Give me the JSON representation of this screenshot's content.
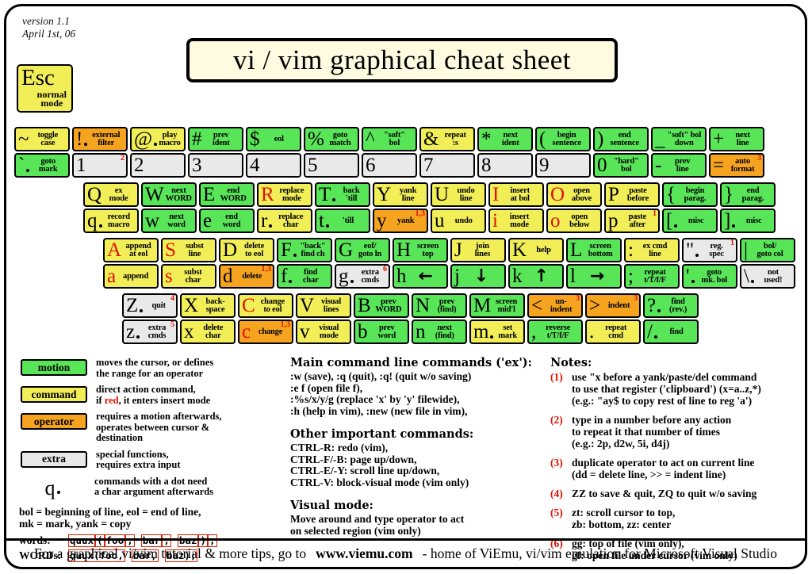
{
  "version": {
    "line1": "version 1.1",
    "line2": "April 1st, 06"
  },
  "title": "vi / vim graphical cheat sheet",
  "esc": {
    "label": "Esc",
    "sub": "normal\nmode"
  },
  "colors": {
    "motion": "#58e558",
    "command": "#f1ee58",
    "operator": "#f6a41f",
    "extra": "#e9e9e9",
    "red": "#e01000",
    "cream": "#fffbe0"
  },
  "keyboard": {
    "rows": [
      {
        "keys": [
          {
            "top": {
              "c": "~",
              "t": "command",
              "l": "toggle\ncase"
            },
            "bot": {
              "c": "`",
              "dot": 1,
              "t": "motion",
              "l": "goto\nmark"
            }
          },
          {
            "top": {
              "c": "!",
              "dot": 1,
              "t": "operator",
              "l": "external\nfilter"
            },
            "bot": {
              "c": "1",
              "t": "extra",
              "l": "",
              "sup": "2"
            }
          },
          {
            "top": {
              "c": "@",
              "dot": 1,
              "t": "command",
              "l": "play\nmacro"
            },
            "bot": {
              "c": "2",
              "t": "extra",
              "l": ""
            }
          },
          {
            "top": {
              "c": "#",
              "t": "motion",
              "l": "prev\nident"
            },
            "bot": {
              "c": "3",
              "t": "extra",
              "l": ""
            }
          },
          {
            "top": {
              "c": "$",
              "t": "motion",
              "l": "eol"
            },
            "bot": {
              "c": "4",
              "t": "extra",
              "l": ""
            }
          },
          {
            "top": {
              "c": "%",
              "t": "motion",
              "l": "goto\nmatch"
            },
            "bot": {
              "c": "5",
              "t": "extra",
              "l": ""
            }
          },
          {
            "top": {
              "c": "^",
              "t": "motion",
              "l": "\"soft\"\nbol"
            },
            "bot": {
              "c": "6",
              "t": "extra",
              "l": ""
            }
          },
          {
            "top": {
              "c": "&",
              "t": "command",
              "l": "repeat\n:s"
            },
            "bot": {
              "c": "7",
              "t": "extra",
              "l": ""
            }
          },
          {
            "top": {
              "c": "*",
              "t": "motion",
              "l": "next\nident"
            },
            "bot": {
              "c": "8",
              "t": "extra",
              "l": ""
            }
          },
          {
            "top": {
              "c": "(",
              "t": "motion",
              "l": "begin\nsentence"
            },
            "bot": {
              "c": "9",
              "t": "extra",
              "l": ""
            }
          },
          {
            "top": {
              "c": ")",
              "t": "motion",
              "l": "end\nsentence"
            },
            "bot": {
              "c": "0",
              "t": "motion",
              "l": "\"hard\"\nbol"
            }
          },
          {
            "top": {
              "c": "_",
              "t": "motion",
              "l": "\"soft\" bol\ndown"
            },
            "bot": {
              "c": "-",
              "t": "motion",
              "l": "prev\nline"
            }
          },
          {
            "top": {
              "c": "+",
              "t": "motion",
              "l": "next\nline"
            },
            "bot": {
              "c": "=",
              "t": "operator",
              "l": "auto\nformat",
              "sup": "3"
            }
          }
        ]
      },
      {
        "keys": [
          {
            "top": {
              "c": "Q",
              "t": "command",
              "l": "ex\nmode"
            },
            "bot": {
              "c": "q",
              "dot": 1,
              "t": "command",
              "l": "record\nmacro"
            }
          },
          {
            "top": {
              "c": "W",
              "t": "motion",
              "l": "next\nWORD"
            },
            "bot": {
              "c": "w",
              "t": "motion",
              "l": "next\nword"
            }
          },
          {
            "top": {
              "c": "E",
              "t": "motion",
              "l": "end\nWORD"
            },
            "bot": {
              "c": "e",
              "t": "motion",
              "l": "end\nword"
            }
          },
          {
            "top": {
              "c": "R",
              "red": 1,
              "t": "command",
              "l": "replace\nmode"
            },
            "bot": {
              "c": "r",
              "dot": 1,
              "t": "command",
              "l": "replace\nchar"
            }
          },
          {
            "top": {
              "c": "T",
              "dot": 1,
              "t": "motion",
              "l": "back\n'till"
            },
            "bot": {
              "c": "t",
              "dot": 1,
              "t": "motion",
              "l": "'till"
            }
          },
          {
            "top": {
              "c": "Y",
              "t": "command",
              "l": "yank\nline"
            },
            "bot": {
              "c": "y",
              "t": "operator",
              "l": "yank",
              "sup": "1,3"
            }
          },
          {
            "top": {
              "c": "U",
              "t": "command",
              "l": "undo\nline"
            },
            "bot": {
              "c": "u",
              "t": "command",
              "l": "undo"
            }
          },
          {
            "top": {
              "c": "I",
              "red": 1,
              "t": "command",
              "l": "insert\nat bol"
            },
            "bot": {
              "c": "i",
              "red": 1,
              "t": "command",
              "l": "insert\nmode"
            }
          },
          {
            "top": {
              "c": "O",
              "red": 1,
              "t": "command",
              "l": "open\nabove"
            },
            "bot": {
              "c": "o",
              "red": 1,
              "t": "command",
              "l": "open\nbelow"
            }
          },
          {
            "top": {
              "c": "P",
              "t": "command",
              "l": "paste\nbefore"
            },
            "bot": {
              "c": "p",
              "t": "command",
              "l": "paste\nafter",
              "sup": "1"
            }
          },
          {
            "top": {
              "c": "{",
              "t": "motion",
              "l": "begin\nparag."
            },
            "bot": {
              "c": "[",
              "dot": 1,
              "t": "motion",
              "l": "misc"
            }
          },
          {
            "top": {
              "c": "}",
              "t": "motion",
              "l": "end\nparag."
            },
            "bot": {
              "c": "]",
              "dot": 1,
              "t": "motion",
              "l": "misc"
            }
          }
        ]
      },
      {
        "keys": [
          {
            "top": {
              "c": "A",
              "red": 1,
              "t": "command",
              "l": "append\nat eol"
            },
            "bot": {
              "c": "a",
              "red": 1,
              "t": "command",
              "l": "append"
            }
          },
          {
            "top": {
              "c": "S",
              "red": 1,
              "t": "command",
              "l": "subst\nline"
            },
            "bot": {
              "c": "s",
              "red": 1,
              "t": "command",
              "l": "subst\nchar"
            }
          },
          {
            "top": {
              "c": "D",
              "t": "command",
              "l": "delete\nto eol"
            },
            "bot": {
              "c": "d",
              "t": "operator",
              "l": "delete",
              "sup": "1,3"
            }
          },
          {
            "top": {
              "c": "F",
              "dot": 1,
              "t": "motion",
              "l": "\"back\"\nfind ch"
            },
            "bot": {
              "c": "f",
              "dot": 1,
              "t": "motion",
              "l": "find\nchar"
            }
          },
          {
            "top": {
              "c": "G",
              "t": "motion",
              "l": "eof/\ngoto ln"
            },
            "bot": {
              "c": "g",
              "dot": 1,
              "t": "extra",
              "l": "extra\ncmds",
              "sup": "6"
            }
          },
          {
            "top": {
              "c": "H",
              "t": "motion",
              "l": "screen\ntop"
            },
            "bot": {
              "c": "h",
              "t": "motion",
              "arrow": "left"
            }
          },
          {
            "top": {
              "c": "J",
              "t": "command",
              "l": "join\nlines"
            },
            "bot": {
              "c": "j",
              "t": "motion",
              "arrow": "down"
            }
          },
          {
            "top": {
              "c": "K",
              "t": "command",
              "l": "help"
            },
            "bot": {
              "c": "k",
              "t": "motion",
              "arrow": "up"
            }
          },
          {
            "top": {
              "c": "L",
              "t": "motion",
              "l": "screen\nbottom"
            },
            "bot": {
              "c": "l",
              "t": "motion",
              "arrow": "right"
            }
          },
          {
            "top": {
              "c": ":",
              "t": "command",
              "l": "ex cmd\nline"
            },
            "bot": {
              "c": ";",
              "t": "motion",
              "l": "repeat\nt/T/f/F"
            }
          },
          {
            "top": {
              "c": "\"",
              "dot": 1,
              "t": "extra",
              "l": "reg.\nspec",
              "sup": "1"
            },
            "bot": {
              "c": "'",
              "dot": 1,
              "t": "motion",
              "l": "goto\nmk. bol"
            }
          },
          {
            "top": {
              "c": "|",
              "t": "motion",
              "l": "bol/\ngoto col"
            },
            "bot": {
              "c": "\\",
              "dot": 1,
              "t": "extra",
              "l": "not\nused!"
            }
          }
        ]
      },
      {
        "keys": [
          {
            "top": {
              "c": "Z",
              "dot": 1,
              "t": "extra",
              "l": "quit",
              "sup": "4"
            },
            "bot": {
              "c": "z",
              "dot": 1,
              "t": "extra",
              "l": "extra\ncmds",
              "sup": "5"
            }
          },
          {
            "top": {
              "c": "X",
              "t": "command",
              "l": "back-\nspace"
            },
            "bot": {
              "c": "x",
              "t": "command",
              "l": "delete\nchar"
            }
          },
          {
            "top": {
              "c": "C",
              "red": 1,
              "t": "command",
              "l": "change\nto eol"
            },
            "bot": {
              "c": "c",
              "red": 1,
              "t": "operator",
              "l": "change",
              "sup": "1,3"
            }
          },
          {
            "top": {
              "c": "V",
              "t": "command",
              "l": "visual\nlines"
            },
            "bot": {
              "c": "v",
              "t": "command",
              "l": "visual\nmode"
            }
          },
          {
            "top": {
              "c": "B",
              "t": "motion",
              "l": "prev\nWORD"
            },
            "bot": {
              "c": "b",
              "t": "motion",
              "l": "prev\nword"
            }
          },
          {
            "top": {
              "c": "N",
              "t": "motion",
              "l": "prev\n(find)"
            },
            "bot": {
              "c": "n",
              "t": "motion",
              "l": "next\n(find)"
            }
          },
          {
            "top": {
              "c": "M",
              "t": "motion",
              "l": "screen\nmid'l"
            },
            "bot": {
              "c": "m",
              "dot": 1,
              "t": "command",
              "l": "set\nmark"
            }
          },
          {
            "top": {
              "c": "<",
              "t": "operator",
              "l": "un-\nindent",
              "sup": "3"
            },
            "bot": {
              "c": ",",
              "t": "motion",
              "l": "reverse\nt/T/f/F"
            }
          },
          {
            "top": {
              "c": ">",
              "t": "operator",
              "l": "indent",
              "sup": "3"
            },
            "bot": {
              "c": ".",
              "t": "command",
              "l": "repeat\ncmd"
            }
          },
          {
            "top": {
              "c": "?",
              "dot": 1,
              "t": "motion",
              "l": "find\n(rev.)"
            },
            "bot": {
              "c": "/",
              "dot": 1,
              "t": "motion",
              "l": "find"
            }
          }
        ]
      }
    ]
  },
  "legend": {
    "items": [
      {
        "box": "motion",
        "type": "motion",
        "desc": "moves the cursor, or defines\nthe range for an operator"
      },
      {
        "box": "command",
        "type": "command",
        "desc_pre": "direct action command,\nif ",
        "desc_red": "red",
        "desc_post": ", it enters insert mode"
      },
      {
        "box": "operator",
        "type": "operator",
        "desc": "requires a motion afterwards,\noperates between cursor &\ndestination"
      },
      {
        "box": "extra",
        "type": "extra",
        "desc": "special functions,\nrequires extra input"
      },
      {
        "box": "q",
        "type": "char",
        "desc": "commands with a dot need\na char argument afterwards"
      }
    ],
    "defs": "bol = beginning of line, eol = end of line,\nmk = mark, yank = copy",
    "words_label": "words:",
    "words_groups": [
      [
        "quux",
        "(",
        "foo",
        ","
      ],
      [
        "bar",
        ","
      ],
      [
        "baz",
        ")",
        ";"
      ]
    ],
    "WORDs_label": "WORDs:",
    "WORDs_groups": [
      [
        "quux(foo,"
      ],
      [
        "bar,"
      ],
      [
        "baz);"
      ]
    ]
  },
  "sections": [
    {
      "title": "Main command line commands ('ex'):",
      "lines": ":w (save), :q (quit), :q! (quit w/o saving)\n:e f (open file f),\n:%s/x/y/g (replace 'x' by 'y' filewide),\n:h (help in vim), :new (new file in vim),"
    },
    {
      "title": "Other important commands:",
      "lines": "CTRL-R: redo (vim),\nCTRL-F/-B: page up/down,\nCTRL-E/-Y: scroll line up/down,\nCTRL-V: block-visual mode (vim only)"
    },
    {
      "title": "Visual mode:",
      "lines": "Move around and type operator to act\non selected region (vim only)"
    }
  ],
  "notes": {
    "title": "Notes:",
    "items": [
      {
        "num": "(1)",
        "text": "use \"x before a yank/paste/del command\nto use that register ('clipboard') (x=a..z,*)\n(e.g.: \"ay$ to copy rest of line to reg 'a')"
      },
      {
        "num": "(2)",
        "text": "type in a number before any action\nto repeat it that number of times\n(e.g.: 2p, d2w, 5i, d4j)"
      },
      {
        "num": "(3)",
        "text": "duplicate operator to act on current line\n(dd = delete line, >> = indent line)"
      },
      {
        "num": "(4)",
        "text": "ZZ to save & quit, ZQ to quit w/o saving"
      },
      {
        "num": "(5)",
        "text": "zt: scroll cursor to top,\nzb: bottom, zz: center"
      },
      {
        "num": "(6)",
        "text": "gg: top of file (vim only),\ngf: open file under cursor (vim only)"
      }
    ]
  },
  "footer": {
    "pre": "For a graphical vi/vim tutorial & more tips, go to",
    "link": "www.viemu.com",
    "post": "- home of ViEmu, vi/vim emulation for Microsoft Visual Studio"
  }
}
